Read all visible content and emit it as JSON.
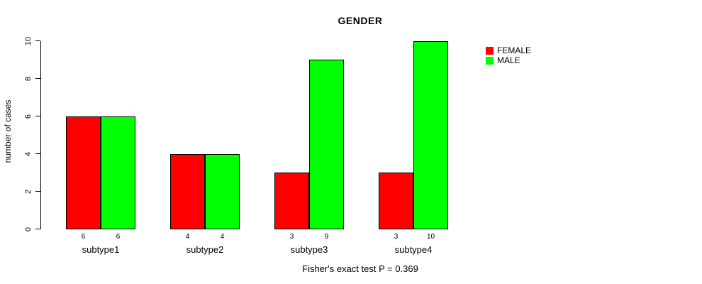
{
  "chart_data": {
    "type": "bar",
    "grouped": true,
    "title": "GENDER",
    "xlabel": "",
    "ylabel": "number of cases",
    "categories": [
      "subtype1",
      "subtype2",
      "subtype3",
      "subtype4"
    ],
    "series": [
      {
        "name": "FEMALE",
        "color": "#ff0000",
        "values": [
          6,
          4,
          3,
          3
        ]
      },
      {
        "name": "MALE",
        "color": "#00ff00",
        "values": [
          6,
          4,
          9,
          10
        ]
      }
    ],
    "bar_value_labels": [
      [
        "6",
        "6"
      ],
      [
        "4",
        "4"
      ],
      [
        "3",
        "9"
      ],
      [
        "3",
        "10"
      ]
    ],
    "ylim": [
      0,
      10
    ],
    "yticks": [
      "0",
      "2",
      "4",
      "6",
      "8",
      "10"
    ],
    "grid": false,
    "legend_position": "top-right",
    "annotation": "Fisher's exact test P = 0.369"
  },
  "legend": {
    "items": [
      {
        "label": "FEMALE",
        "color": "#ff0000"
      },
      {
        "label": "MALE",
        "color": "#00ff00"
      }
    ]
  }
}
